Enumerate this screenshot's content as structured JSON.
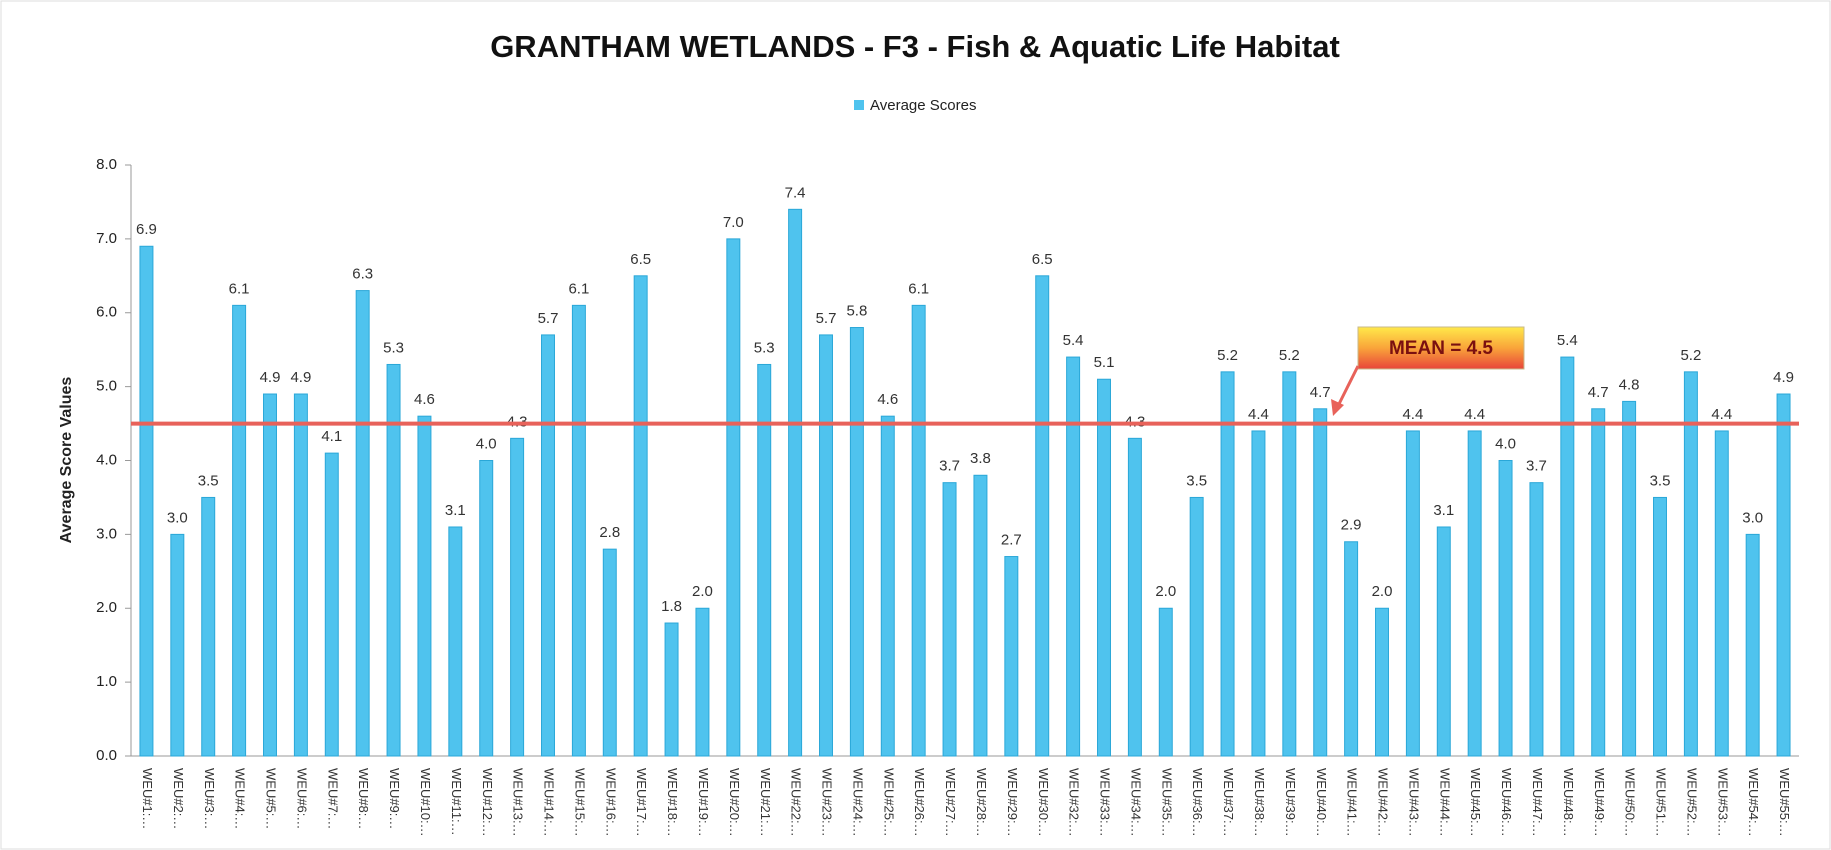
{
  "chart_data": {
    "type": "bar",
    "title": "GRANTHAM WETLANDS - F3 - Fish & Aquatic Life Habitat",
    "y_label": "Average Score Values",
    "legend": "top",
    "categories": [
      "WEU#1:…",
      "WEU#2:…",
      "WEU#3:…",
      "WEU#4:…",
      "WEU#5:…",
      "WEU#6:…",
      "WEU#7:…",
      "WEU#8:…",
      "WEU#9:…",
      "WEU#10:…",
      "WEU#11:…",
      "WEU#12:…",
      "WEU#13:…",
      "WEU#14:…",
      "WEU#15:…",
      "WEU#16:…",
      "WEU#17:…",
      "WEU#18:…",
      "WEU#19:…",
      "WEU#20:…",
      "WEU#21:…",
      "WEU#22:…",
      "WEU#23:…",
      "WEU#24:…",
      "WEU#25:…",
      "WEU#26:…",
      "WEU#27:…",
      "WEU#28:…",
      "WEU#29:…",
      "WEU#30:…",
      "WEU#32:…",
      "WEU#33:…",
      "WEU#34:…",
      "WEU#35:…",
      "WEU#36:…",
      "WEU#37:…",
      "WEU#38:…",
      "WEU#39:…",
      "WEU#40:…",
      "WEU#41:…",
      "WEU#42:…",
      "WEU#43:…",
      "WEU#44:…",
      "WEU#45:…",
      "WEU#46:…",
      "WEU#47:…",
      "WEU#48:…",
      "WEU#49:…",
      "WEU#50:…",
      "WEU#51:…",
      "WEU#52:…",
      "WEU#53:…",
      "WEU#54:…",
      "WEU#55:…"
    ],
    "series": [
      {
        "name": "Average Scores",
        "color": "#4fc3ee",
        "values": [
          6.9,
          3.0,
          3.5,
          6.1,
          4.9,
          4.9,
          4.1,
          6.3,
          5.3,
          4.6,
          3.1,
          4.0,
          4.3,
          5.7,
          6.1,
          2.8,
          6.5,
          1.8,
          2.0,
          7.0,
          5.3,
          7.4,
          5.7,
          5.8,
          4.6,
          6.1,
          3.7,
          3.8,
          2.7,
          6.5,
          5.4,
          5.1,
          4.3,
          2.0,
          3.5,
          5.2,
          4.4,
          5.2,
          4.7,
          2.9,
          2.0,
          4.4,
          3.1,
          4.4,
          4.0,
          3.7,
          5.4,
          4.7,
          4.8,
          3.5,
          5.2,
          4.4,
          3.0,
          4.9
        ],
        "value_labels": [
          "6.9",
          "3.0",
          "3.5",
          "6.1",
          "4.9",
          "4.9",
          "4.1",
          "6.3",
          "5.3",
          "4.6",
          "3.1",
          "4.0",
          "4.3",
          "5.7",
          "6.1",
          "2.8",
          "6.5",
          "1.8",
          "2.0",
          "7.0",
          "5.3",
          "7.4",
          "5.7",
          "5.8",
          "4.6",
          "6.1",
          "3.7",
          "3.8",
          "2.7",
          "6.5",
          "5.4",
          "5.1",
          "4.3",
          "2.0",
          "3.5",
          "5.2",
          "4.4",
          "5.2",
          "4.7",
          "2.9",
          "2.0",
          "4.4",
          "3.1",
          "4.4",
          "4.0",
          "3.7",
          "5.4",
          "4.7",
          "4.8",
          "3.5",
          "5.2",
          "4.4",
          "3.0",
          "4.9"
        ]
      }
    ],
    "ylim": [
      0,
      8
    ],
    "yticks": [
      {
        "value": 0,
        "label": "0.0"
      },
      {
        "value": 1,
        "label": "1.0"
      },
      {
        "value": 2,
        "label": "2.0"
      },
      {
        "value": 3,
        "label": "3.0"
      },
      {
        "value": 4,
        "label": "4.0"
      },
      {
        "value": 5,
        "label": "5.0"
      },
      {
        "value": 6,
        "label": "6.0"
      },
      {
        "value": 7,
        "label": "7.0"
      },
      {
        "value": 8,
        "label": "8.0"
      }
    ],
    "mean": {
      "value": 4.5,
      "label": "MEAN = 4.5",
      "color": "#e8625a"
    }
  }
}
